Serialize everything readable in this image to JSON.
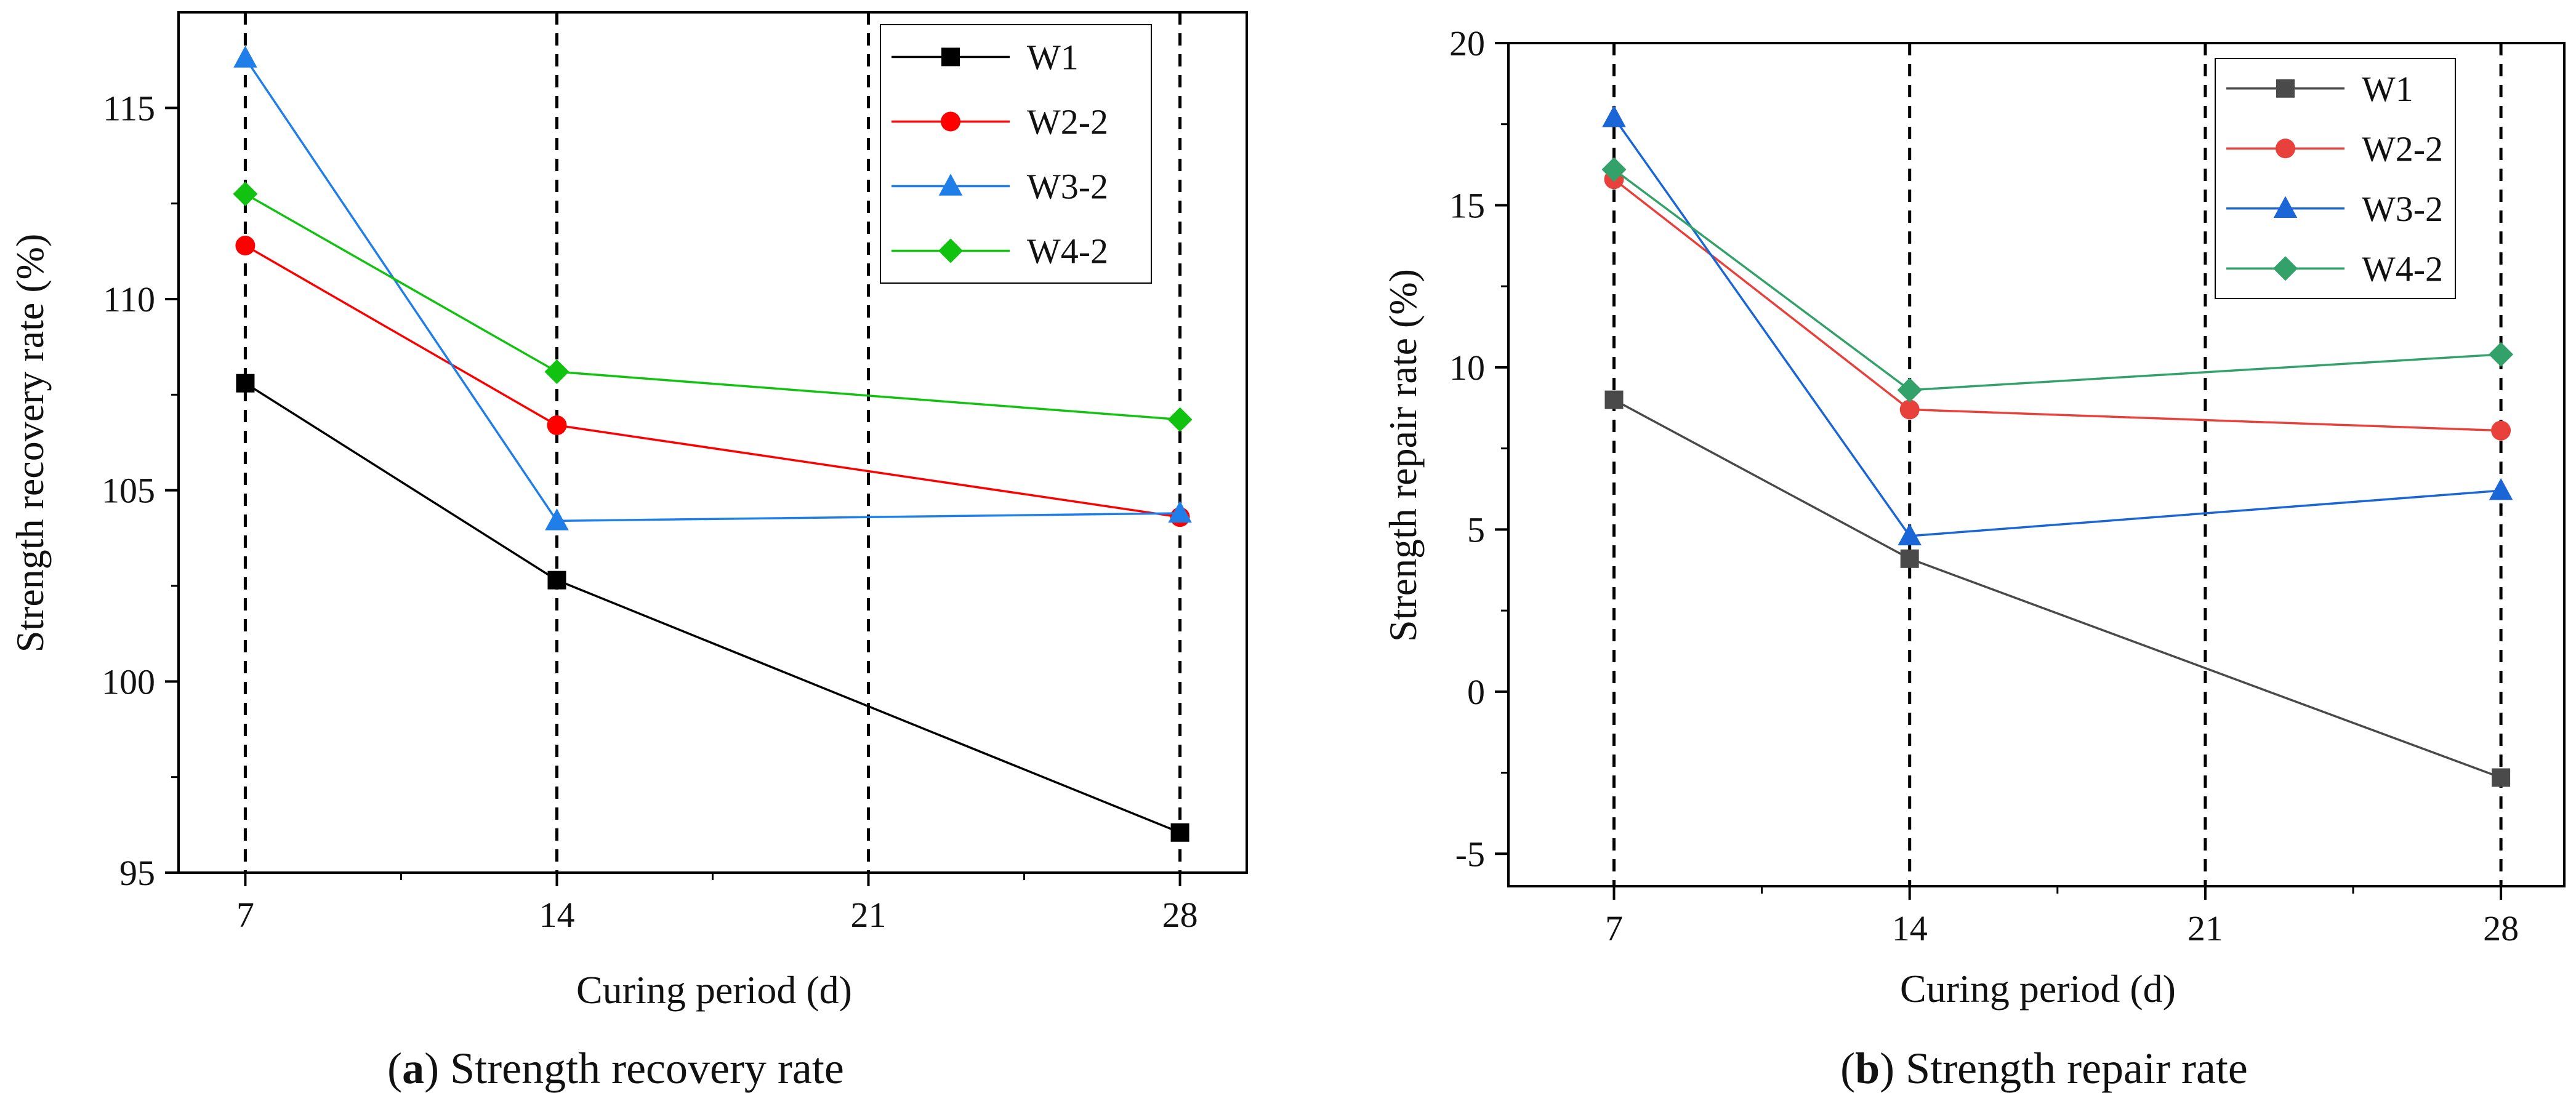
{
  "chart_data": [
    {
      "type": "line",
      "panel": "a",
      "caption_letter": "a",
      "caption_text": "Strength recovery rate",
      "xlabel": "Curing period (d)",
      "ylabel": "Strength recovery rate (%)",
      "x": [
        7,
        14,
        21,
        28
      ],
      "x_ticks": [
        "7",
        "14",
        "21",
        "28"
      ],
      "xlim": [
        5.5,
        29.5
      ],
      "ylim": [
        95,
        117.5
      ],
      "y_ticks": [
        95,
        100,
        105,
        110,
        115
      ],
      "vlines": [
        7,
        14,
        21,
        28
      ],
      "legend_position": "top-right",
      "series": [
        {
          "name": "W1",
          "color": "#000000",
          "marker": "square",
          "x": [
            7,
            14,
            28
          ],
          "values": [
            107.8,
            102.65,
            96.05
          ]
        },
        {
          "name": "W2-2",
          "color": "#ff0000",
          "marker": "circle",
          "x": [
            7,
            14,
            28
          ],
          "values": [
            111.4,
            106.7,
            104.3
          ]
        },
        {
          "name": "W3-2",
          "color": "#1f7ee8",
          "marker": "triangle",
          "x": [
            7,
            14,
            28
          ],
          "values": [
            116.3,
            104.2,
            104.4
          ]
        },
        {
          "name": "W4-2",
          "color": "#11c211",
          "marker": "diamond",
          "x": [
            7,
            14,
            28
          ],
          "values": [
            112.75,
            108.1,
            106.85
          ]
        }
      ]
    },
    {
      "type": "line",
      "panel": "b",
      "caption_letter": "b",
      "caption_text": "Strength repair rate",
      "xlabel": "Curing period (d)",
      "ylabel": "Strength repair rate (%)",
      "x": [
        7,
        14,
        21,
        28
      ],
      "x_ticks": [
        "7",
        "14",
        "21",
        "28"
      ],
      "xlim": [
        4.5,
        29.5
      ],
      "ylim": [
        -6,
        20
      ],
      "y_ticks": [
        -5,
        0,
        5,
        10,
        15,
        20
      ],
      "y_tick_labels": [
        "-5",
        "0",
        "5",
        "10",
        "15",
        "20"
      ],
      "vlines": [
        7,
        14,
        21,
        28
      ],
      "legend_position": "top-right",
      "series": [
        {
          "name": "W1",
          "color": "#4a4a4a",
          "marker": "square",
          "x": [
            7,
            14,
            28
          ],
          "values": [
            9.0,
            4.1,
            -2.65
          ]
        },
        {
          "name": "W2-2",
          "color": "#e8403a",
          "marker": "circle",
          "x": [
            7,
            14,
            28
          ],
          "values": [
            15.8,
            8.7,
            8.05
          ]
        },
        {
          "name": "W3-2",
          "color": "#1a66d6",
          "marker": "triangle",
          "x": [
            7,
            14,
            28
          ],
          "values": [
            17.7,
            4.8,
            6.2
          ]
        },
        {
          "name": "W4-2",
          "color": "#33a16a",
          "marker": "diamond",
          "x": [
            7,
            14,
            28
          ],
          "values": [
            16.1,
            9.3,
            10.4
          ]
        }
      ]
    }
  ]
}
